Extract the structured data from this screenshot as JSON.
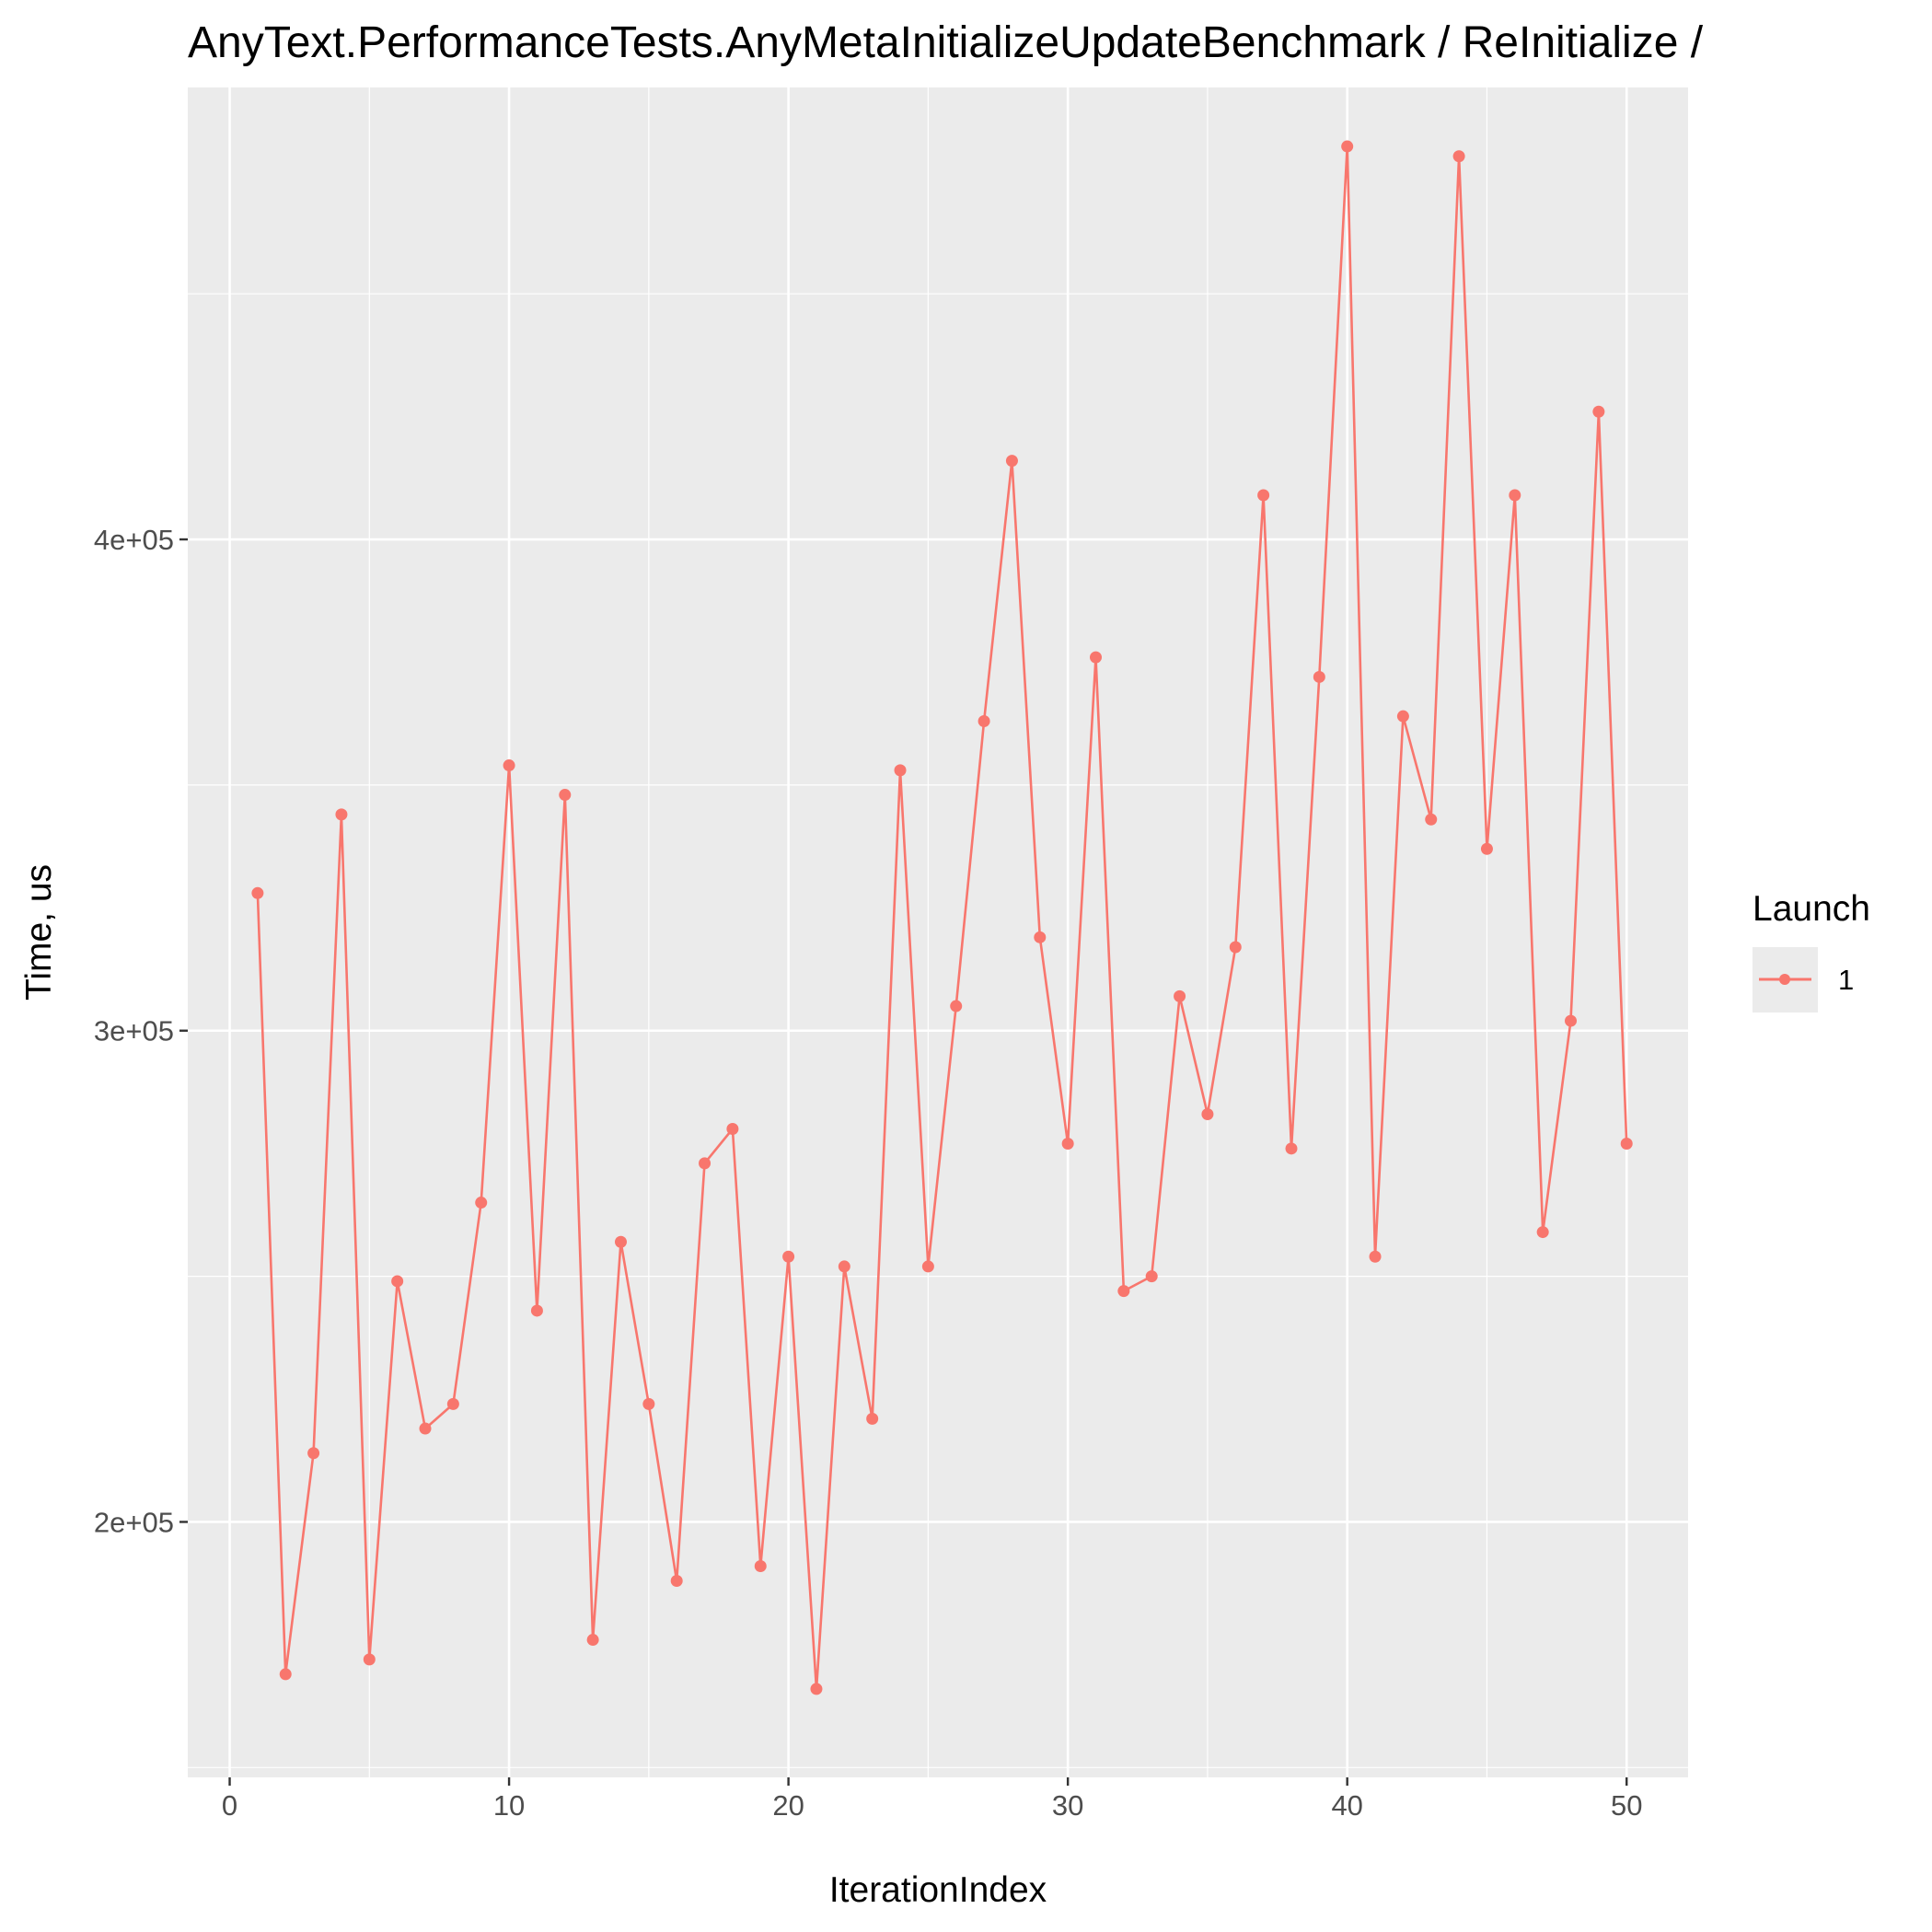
{
  "chart_data": {
    "type": "line",
    "title": "AnyText.PerformanceTests.AnyMetaInitializeUpdateBenchmark / ReInitialize /",
    "xlabel": "IterationIndex",
    "ylabel": "Time, us",
    "xlim": [
      -1.5,
      52.2
    ],
    "ylim": [
      148000,
      492000
    ],
    "x_ticks": [
      0,
      10,
      20,
      30,
      40,
      50
    ],
    "x_tick_labels": [
      "0",
      "10",
      "20",
      "30",
      "40",
      "50"
    ],
    "x_minor_ticks": [
      5,
      15,
      25,
      35,
      45
    ],
    "y_ticks": [
      200000,
      300000,
      400000
    ],
    "y_tick_labels": [
      "2e+05",
      "3e+05",
      "4e+05"
    ],
    "y_minor_ticks": [
      150000,
      250000,
      350000,
      450000
    ],
    "grid": true,
    "legend": {
      "title": "Launch",
      "position": "right",
      "entries": [
        "1"
      ]
    },
    "series": [
      {
        "name": "1",
        "color": "#F8766D",
        "x": [
          1,
          2,
          3,
          4,
          5,
          6,
          7,
          8,
          9,
          10,
          11,
          12,
          13,
          14,
          15,
          16,
          17,
          18,
          19,
          20,
          21,
          22,
          23,
          24,
          25,
          26,
          27,
          28,
          29,
          30,
          31,
          32,
          33,
          34,
          35,
          36,
          37,
          38,
          39,
          40,
          41,
          42,
          43,
          44,
          45,
          46,
          47,
          48,
          49,
          50
        ],
        "y": [
          328000,
          169000,
          214000,
          344000,
          172000,
          249000,
          219000,
          224000,
          265000,
          354000,
          243000,
          348000,
          176000,
          257000,
          224000,
          188000,
          273000,
          280000,
          191000,
          254000,
          166000,
          252000,
          221000,
          353000,
          252000,
          305000,
          363000,
          416000,
          319000,
          277000,
          376000,
          247000,
          250000,
          307000,
          283000,
          317000,
          409000,
          276000,
          372000,
          480000,
          254000,
          364000,
          343000,
          478000,
          337000,
          409000,
          259000,
          302000,
          426000,
          277000
        ]
      }
    ]
  }
}
